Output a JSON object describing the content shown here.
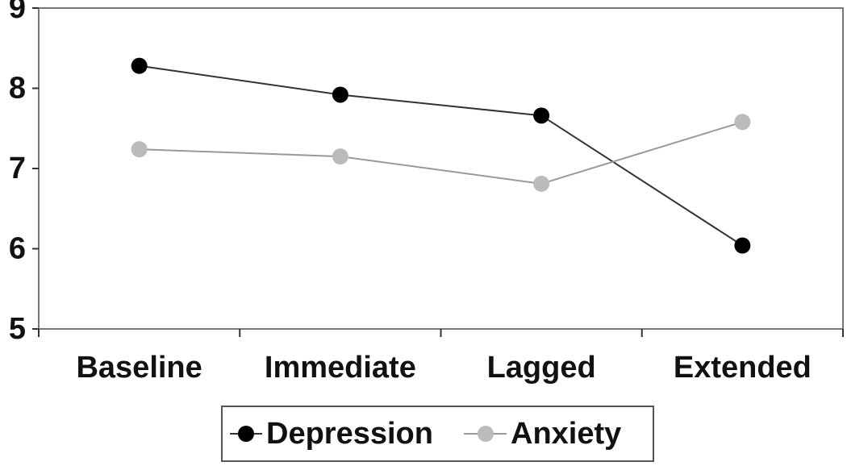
{
  "chart_data": {
    "type": "line",
    "title": "",
    "xlabel": "",
    "ylabel": "",
    "categories": [
      "Baseline",
      "Immediate",
      "Lagged",
      "Extended"
    ],
    "ylim": [
      5,
      9
    ],
    "yticks": [
      5,
      6,
      7,
      8,
      9
    ],
    "grid": false,
    "legend_position": "bottom",
    "series": [
      {
        "name": "Depression",
        "values": [
          8.28,
          7.92,
          7.66,
          6.04
        ],
        "color": "#000000",
        "line_color": "#333333"
      },
      {
        "name": "Anxiety",
        "values": [
          7.24,
          7.15,
          6.81,
          7.58
        ],
        "color": "#bbbbbb",
        "line_color": "#999999"
      }
    ]
  }
}
